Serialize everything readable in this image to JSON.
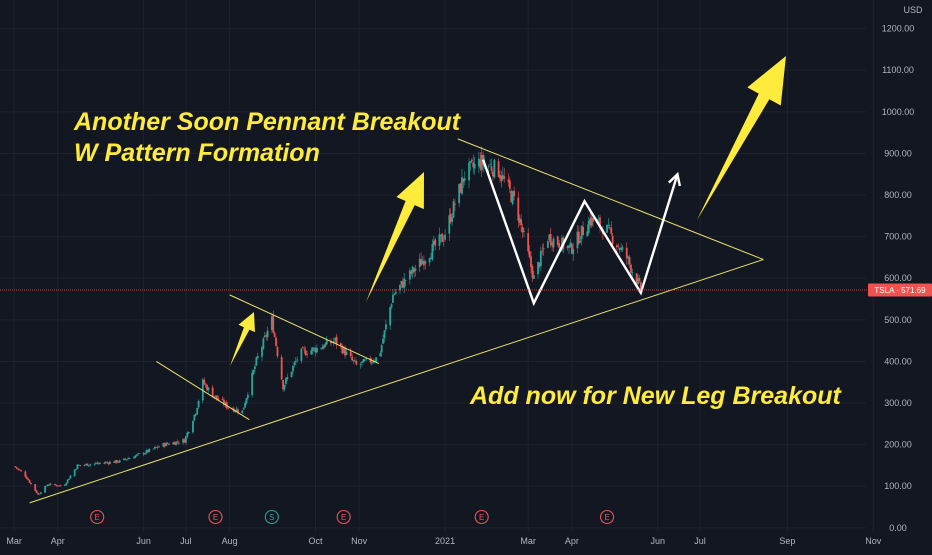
{
  "chart_data": {
    "type": "candlestick",
    "symbol": "TSLA",
    "currency_label": "USD",
    "last_price_label": "TSLA · 571.69",
    "last_price": 571.69,
    "ylim": [
      -10,
      1240
    ],
    "y_ticks": [
      "1200.00",
      "1100.00",
      "1000.00",
      "900.00",
      "800.00",
      "700.00",
      "600.00",
      "500.00",
      "400.00",
      "300.00",
      "200.00",
      "100.00",
      "0.00"
    ],
    "x_ticks": [
      "Mar",
      "Apr",
      "Jun",
      "Jul",
      "Aug",
      "Oct",
      "Nov",
      "2021",
      "Mar",
      "Apr",
      "Jun",
      "Jul",
      "Sep",
      "Nov"
    ],
    "price_path": [
      {
        "t": "2020-03-01",
        "v": 148
      },
      {
        "t": "2020-03-08",
        "v": 130
      },
      {
        "t": "2020-03-18",
        "v": 80
      },
      {
        "t": "2020-03-25",
        "v": 105
      },
      {
        "t": "2020-04-05",
        "v": 100
      },
      {
        "t": "2020-04-15",
        "v": 150
      },
      {
        "t": "2020-04-30",
        "v": 155
      },
      {
        "t": "2020-05-15",
        "v": 160
      },
      {
        "t": "2020-06-01",
        "v": 180
      },
      {
        "t": "2020-06-15",
        "v": 200
      },
      {
        "t": "2020-06-30",
        "v": 210
      },
      {
        "t": "2020-07-08",
        "v": 280
      },
      {
        "t": "2020-07-13",
        "v": 350
      },
      {
        "t": "2020-07-20",
        "v": 320
      },
      {
        "t": "2020-07-31",
        "v": 290
      },
      {
        "t": "2020-08-10",
        "v": 280
      },
      {
        "t": "2020-08-20",
        "v": 400
      },
      {
        "t": "2020-08-31",
        "v": 500
      },
      {
        "t": "2020-09-08",
        "v": 340
      },
      {
        "t": "2020-09-20",
        "v": 420
      },
      {
        "t": "2020-10-01",
        "v": 430
      },
      {
        "t": "2020-10-15",
        "v": 450
      },
      {
        "t": "2020-10-30",
        "v": 390
      },
      {
        "t": "2020-11-15",
        "v": 410
      },
      {
        "t": "2020-11-25",
        "v": 560
      },
      {
        "t": "2020-12-10",
        "v": 620
      },
      {
        "t": "2020-12-31",
        "v": 700
      },
      {
        "t": "2021-01-15",
        "v": 850
      },
      {
        "t": "2021-01-26",
        "v": 880
      },
      {
        "t": "2021-02-08",
        "v": 860
      },
      {
        "t": "2021-02-20",
        "v": 780
      },
      {
        "t": "2021-03-05",
        "v": 600
      },
      {
        "t": "2021-03-15",
        "v": 700
      },
      {
        "t": "2021-03-31",
        "v": 670
      },
      {
        "t": "2021-04-14",
        "v": 740
      },
      {
        "t": "2021-04-25",
        "v": 720
      },
      {
        "t": "2021-05-10",
        "v": 650
      },
      {
        "t": "2021-05-20",
        "v": 571.69
      }
    ],
    "trendlines": [
      {
        "from": {
          "t": "2020-03-12",
          "v": 60
        },
        "to": {
          "t": "2021-08-15",
          "v": 645
        },
        "color": "#e8e36b"
      },
      {
        "from": {
          "t": "2021-01-10",
          "v": 935
        },
        "to": {
          "t": "2021-08-15",
          "v": 645
        },
        "color": "#e8e36b"
      },
      {
        "from": {
          "t": "2020-06-10",
          "v": 400
        },
        "to": {
          "t": "2020-08-15",
          "v": 260
        },
        "color": "#e8e36b"
      },
      {
        "from": {
          "t": "2020-08-01",
          "v": 560
        },
        "to": {
          "t": "2020-11-15",
          "v": 395
        },
        "color": "#e8e36b"
      }
    ],
    "w_pattern": [
      {
        "t": "2021-01-28",
        "v": 885
      },
      {
        "t": "2021-03-05",
        "v": 540
      },
      {
        "t": "2021-04-10",
        "v": 785
      },
      {
        "t": "2021-05-20",
        "v": 565
      },
      {
        "t": "2021-06-15",
        "v": 850
      }
    ],
    "annotations": [
      "Another Soon Pennant Breakout",
      "W Pattern Formation",
      "Add now for New Leg Breakout"
    ],
    "event_markers": [
      {
        "t": "2020-04-29",
        "label": "E",
        "kind": "earnings"
      },
      {
        "t": "2020-07-22",
        "label": "E",
        "kind": "earnings"
      },
      {
        "t": "2020-08-31",
        "label": "S",
        "kind": "split"
      },
      {
        "t": "2020-10-21",
        "label": "E",
        "kind": "earnings"
      },
      {
        "t": "2021-01-27",
        "label": "E",
        "kind": "earnings"
      },
      {
        "t": "2021-04-26",
        "label": "E",
        "kind": "earnings"
      }
    ],
    "colors": {
      "up": "#26a69a",
      "down": "#ef5350",
      "background": "#131722",
      "trend": "#e8e36b",
      "arrow": "#ffeb3b",
      "w": "#ffffff",
      "price_line": "#ef5350"
    }
  }
}
